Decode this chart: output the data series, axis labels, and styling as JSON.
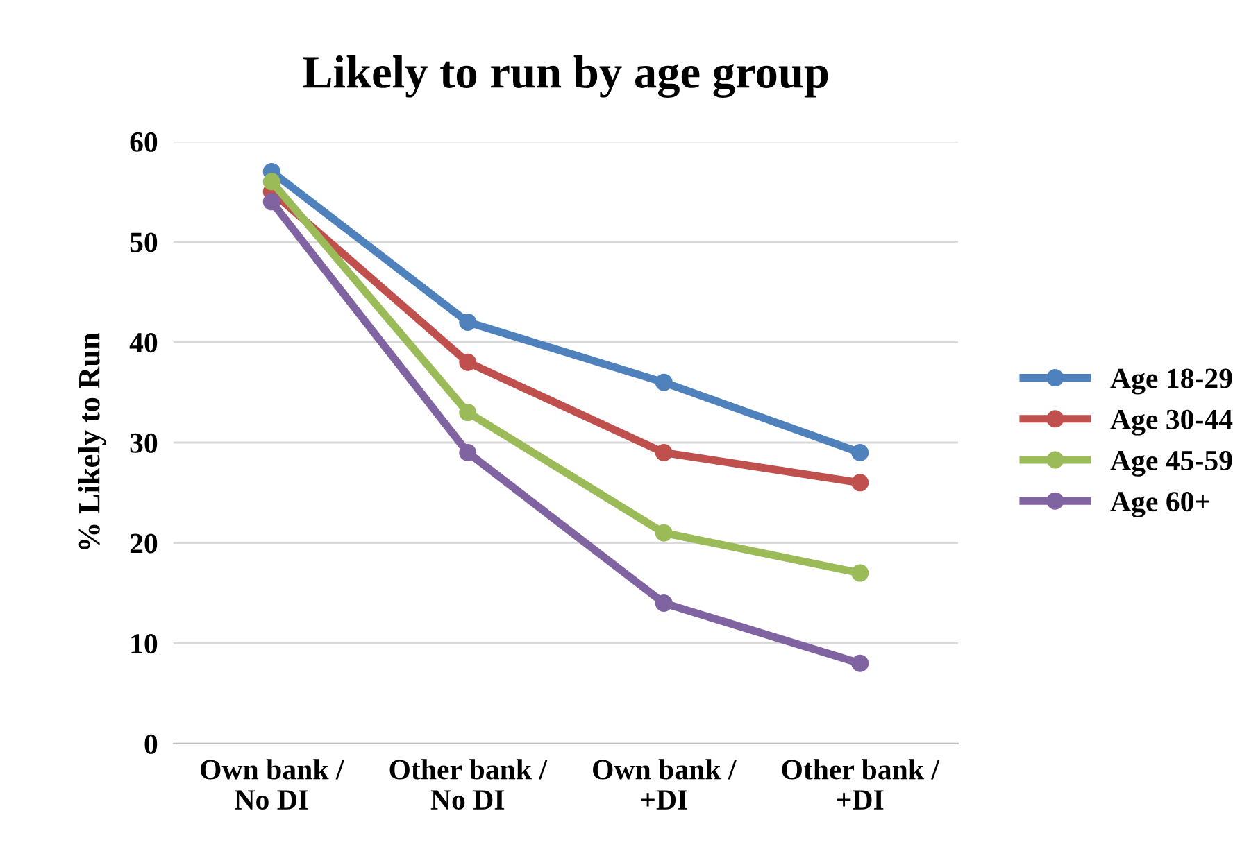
{
  "chart_data": {
    "type": "line",
    "title": "Likely to run by age group",
    "ylabel": "% Likely to Run",
    "categories": [
      "Own bank /\nNo DI",
      "Other bank /\nNo DI",
      "Own bank /\n+DI",
      "Other bank /\n+DI"
    ],
    "series": [
      {
        "name": "Age 18-29",
        "color": "#4f81bd",
        "values": [
          57,
          42,
          36,
          29
        ]
      },
      {
        "name": "Age 30-44",
        "color": "#c0504d",
        "values": [
          55,
          38,
          29,
          26
        ]
      },
      {
        "name": "Age 45-59",
        "color": "#9bbb59",
        "values": [
          56,
          33,
          21,
          17
        ]
      },
      {
        "name": "Age 60+",
        "color": "#8064a2",
        "values": [
          54,
          29,
          14,
          8
        ]
      }
    ],
    "ylim": [
      0,
      60
    ],
    "yticks": [
      0,
      10,
      20,
      30,
      40,
      50,
      60
    ],
    "grid": "y",
    "legend": "right",
    "marker": "circle",
    "line_style": "solid"
  }
}
